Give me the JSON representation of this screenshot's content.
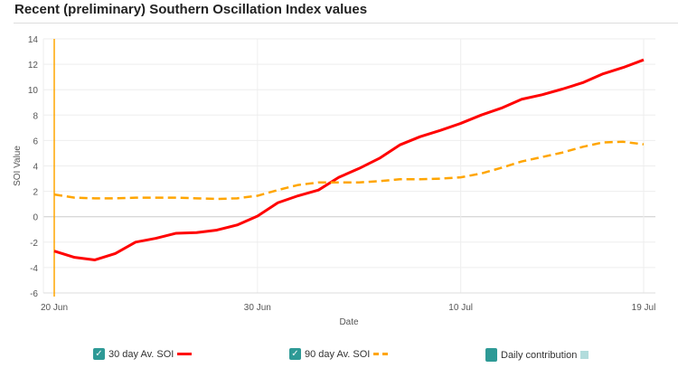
{
  "chart_data": {
    "type": "line",
    "title": "Recent (preliminary) Southern Oscillation Index values",
    "xlabel": "Date",
    "ylabel": "SOI Value",
    "ylim": [
      -6,
      14
    ],
    "yticks": [
      -6,
      -4,
      -2,
      0,
      2,
      4,
      6,
      8,
      10,
      12,
      14
    ],
    "xticks": [
      "20 Jun",
      "30 Jun",
      "10 Jul",
      "19 Jul"
    ],
    "x": [
      "20 Jun",
      "21 Jun",
      "22 Jun",
      "23 Jun",
      "24 Jun",
      "25 Jun",
      "26 Jun",
      "27 Jun",
      "28 Jun",
      "29 Jun",
      "30 Jun",
      "1 Jul",
      "2 Jul",
      "3 Jul",
      "4 Jul",
      "5 Jul",
      "6 Jul",
      "7 Jul",
      "8 Jul",
      "9 Jul",
      "10 Jul",
      "11 Jul",
      "12 Jul",
      "13 Jul",
      "14 Jul",
      "15 Jul",
      "16 Jul",
      "17 Jul",
      "18 Jul",
      "19 Jul"
    ],
    "grid": true,
    "marker_line": "20 Jun",
    "series": [
      {
        "name": "30 day Av. SOI",
        "color": "#ff0000",
        "style": "solid",
        "values": [
          -2.7,
          -3.2,
          -3.4,
          -2.9,
          -2.0,
          -1.7,
          -1.3,
          -1.25,
          -1.05,
          -0.65,
          0.05,
          1.1,
          1.65,
          2.1,
          3.1,
          3.8,
          4.6,
          5.65,
          6.3,
          6.8,
          7.35,
          8.0,
          8.55,
          9.25,
          9.6,
          10.05,
          10.55,
          11.25,
          11.75,
          12.35
        ]
      },
      {
        "name": "90 day Av. SOI",
        "color": "#ffa500",
        "style": "dashed",
        "values": [
          1.75,
          1.5,
          1.45,
          1.45,
          1.5,
          1.5,
          1.5,
          1.45,
          1.4,
          1.45,
          1.65,
          2.1,
          2.5,
          2.7,
          2.7,
          2.7,
          2.8,
          2.95,
          2.95,
          3.0,
          3.1,
          3.4,
          3.85,
          4.35,
          4.7,
          5.05,
          5.5,
          5.85,
          5.9,
          5.7
        ]
      }
    ],
    "legend": {
      "position": "bottom",
      "items": [
        "30 day Av. SOI",
        "90 day Av. SOI",
        "Daily contribution"
      ],
      "daily_color": "#2e9a96",
      "daily_light_color": "#b2dcdc"
    }
  }
}
